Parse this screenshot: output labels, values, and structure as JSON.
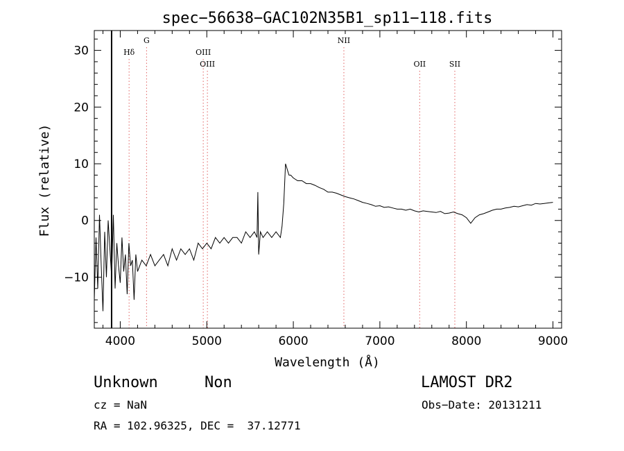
{
  "chart_data": {
    "type": "line",
    "title": "spec−56638−GAC102N35B1_sp11−118.fits",
    "xlabel": "Wavelength (Å)",
    "ylabel": "Flux (relative)",
    "xlim": [
      3700,
      9100
    ],
    "ylim": [
      -19,
      33.5
    ],
    "x_ticks": [
      4000,
      5000,
      6000,
      7000,
      8000,
      9000
    ],
    "x_tick_labels": [
      "4000",
      "5000",
      "6000",
      "7000",
      "8000",
      "9000"
    ],
    "y_ticks": [
      -10,
      0,
      10,
      20,
      30
    ],
    "y_tick_labels": [
      "−10",
      "0",
      "10",
      "20",
      "30"
    ],
    "grid": false,
    "series": [
      {
        "color": "#000000",
        "x": [
          3700,
          3720,
          3740,
          3760,
          3780,
          3800,
          3820,
          3840,
          3860,
          3880,
          3900,
          3920,
          3940,
          3960,
          3980,
          4000,
          4020,
          4040,
          4060,
          4080,
          4100,
          4120,
          4140,
          4160,
          4180,
          4200,
          4250,
          4300,
          4350,
          4400,
          4450,
          4500,
          4550,
          4600,
          4650,
          4700,
          4750,
          4800,
          4850,
          4900,
          4950,
          5000,
          5050,
          5100,
          5150,
          5200,
          5250,
          5300,
          5350,
          5400,
          5450,
          5500,
          5550,
          5580,
          5590,
          5600,
          5620,
          5650,
          5700,
          5750,
          5800,
          5850,
          5870,
          5890,
          5910,
          5930,
          5950,
          5970,
          6000,
          6050,
          6100,
          6150,
          6200,
          6250,
          6300,
          6350,
          6400,
          6450,
          6500,
          6550,
          6600,
          6650,
          6700,
          6750,
          6800,
          6850,
          6900,
          6950,
          7000,
          7050,
          7100,
          7150,
          7200,
          7250,
          7300,
          7350,
          7400,
          7450,
          7500,
          7550,
          7600,
          7650,
          7700,
          7750,
          7800,
          7850,
          7900,
          7950,
          8000,
          8050,
          8100,
          8150,
          8200,
          8250,
          8300,
          8350,
          8400,
          8450,
          8500,
          8550,
          8600,
          8650,
          8700,
          8750,
          8800,
          8850,
          8900,
          8950,
          9000
        ],
        "y": [
          -14,
          -3,
          -12,
          1,
          -8,
          -16,
          -2,
          -10,
          0,
          -5,
          -10,
          1,
          -12,
          -4,
          -8,
          -11,
          -3,
          -9,
          -6,
          -13,
          -4,
          -8,
          -7,
          -14,
          -6,
          -9,
          -7,
          -8,
          -6,
          -8,
          -7,
          -6,
          -8,
          -5,
          -7,
          -5,
          -6,
          -5,
          -7,
          -4,
          -5,
          -4,
          -5,
          -3,
          -4,
          -3,
          -4,
          -3,
          -3,
          -4,
          -2,
          -3,
          -2,
          -3,
          5,
          -6,
          -2,
          -3,
          -2,
          -3,
          -2,
          -3,
          -1,
          3,
          10,
          9,
          8,
          8,
          7.5,
          7,
          7,
          6.5,
          6.5,
          6.2,
          5.8,
          5.5,
          5,
          5,
          4.8,
          4.5,
          4.2,
          4,
          3.8,
          3.5,
          3.2,
          3,
          2.8,
          2.5,
          2.6,
          2.3,
          2.4,
          2.2,
          2,
          2,
          1.8,
          2,
          1.7,
          1.5,
          1.7,
          1.6,
          1.5,
          1.4,
          1.6,
          1.2,
          1.3,
          1.5,
          1.2,
          1,
          0.5,
          -0.5,
          0.5,
          1,
          1.2,
          1.5,
          1.8,
          2,
          2,
          2.2,
          2.3,
          2.5,
          2.4,
          2.6,
          2.8,
          2.7,
          3,
          2.9,
          3,
          3.1,
          3.2
        ]
      }
    ],
    "vertical_marker": {
      "x": 3900
    },
    "lines": [
      {
        "label": "Hδ",
        "x": 4102,
        "row": 1
      },
      {
        "label": "G",
        "x": 4304,
        "row": 0
      },
      {
        "label": "OIII",
        "x": 4959,
        "row": 1
      },
      {
        "label": "OIII",
        "x": 5007,
        "row": 2
      },
      {
        "label": "NII",
        "x": 6584,
        "row": 0
      },
      {
        "label": "OII",
        "x": 7460,
        "row": 2
      },
      {
        "label": "SII",
        "x": 7866,
        "row": 2
      }
    ],
    "line_color": "#e06060"
  },
  "footer": {
    "class_label": "Unknown",
    "subclass_label": "Non",
    "survey": "LAMOST DR2",
    "redshift": "cz = NaN",
    "obs_date": "Obs−Date: 20131211",
    "coords": "RA = 102.96325, DEC =  37.12771"
  }
}
